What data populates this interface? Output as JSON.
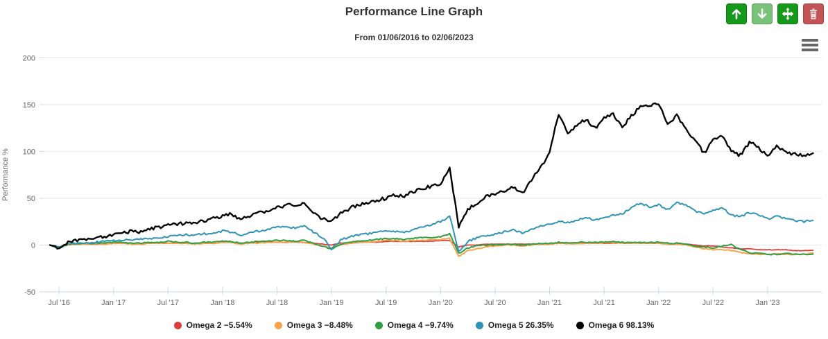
{
  "header": {
    "title": "Performance Line Graph",
    "subtitle": "From 01/06/2016 to 02/06/2023"
  },
  "toolbar": {
    "buttons": [
      {
        "name": "move-up-button",
        "icon": "arrow-up-icon",
        "color": "#15991b",
        "state": "enabled"
      },
      {
        "name": "move-down-button",
        "icon": "arrow-down-icon",
        "color": "#79c279",
        "state": "disabled"
      },
      {
        "name": "move-button",
        "icon": "move-arrows-icon",
        "color": "#15991b",
        "state": "enabled"
      },
      {
        "name": "delete-button",
        "icon": "trash-icon",
        "color": "#c25356",
        "state": "enabled"
      }
    ],
    "menu_icon": "hamburger-menu-icon"
  },
  "chart_data": {
    "type": "line",
    "title": "Performance Line Graph",
    "subtitle": "From 01/06/2016 to 02/06/2023",
    "xlabel": "",
    "ylabel": "Performance %",
    "ylim": [
      -50,
      200
    ],
    "grid": true,
    "legend_position": "bottom",
    "x_unit": "months since 2016-06",
    "x_range_months": [
      0,
      84
    ],
    "y_ticks": [
      {
        "v": -50,
        "label": "-50"
      },
      {
        "v": 0,
        "label": "0"
      },
      {
        "v": 50,
        "label": "50"
      },
      {
        "v": 100,
        "label": "100"
      },
      {
        "v": 150,
        "label": "150"
      },
      {
        "v": 200,
        "label": "200"
      }
    ],
    "x_ticks": [
      {
        "m": 1,
        "label": "Jul '16"
      },
      {
        "m": 7,
        "label": "Jan '17"
      },
      {
        "m": 13,
        "label": "Jul '17"
      },
      {
        "m": 19,
        "label": "Jan '18"
      },
      {
        "m": 25,
        "label": "Jul '18"
      },
      {
        "m": 31,
        "label": "Jan '19"
      },
      {
        "m": 37,
        "label": "Jul '19"
      },
      {
        "m": 43,
        "label": "Jan '20"
      },
      {
        "m": 49,
        "label": "Jul '20"
      },
      {
        "m": 55,
        "label": "Jan '21"
      },
      {
        "m": 61,
        "label": "Jul '21"
      },
      {
        "m": 67,
        "label": "Jan '22"
      },
      {
        "m": 73,
        "label": "Jul '22"
      },
      {
        "m": 79,
        "label": "Jan '23"
      }
    ],
    "series": [
      {
        "name": "Omega 2",
        "final_value_pct": -5.54,
        "legend_label": "Omega 2 −5.54%",
        "color": "#dc3c3c",
        "jitter": 0.25,
        "width": 1.8,
        "values": [
          0,
          -2,
          0,
          1,
          1,
          1,
          1,
          2,
          2,
          2,
          2,
          2,
          2,
          2,
          2,
          2,
          2,
          2,
          2,
          3,
          3,
          2,
          2,
          3,
          3,
          3,
          3,
          3,
          3,
          2,
          1,
          0,
          2,
          2,
          3,
          3,
          3,
          4,
          4,
          4,
          4,
          4,
          4,
          5,
          5,
          -2,
          0,
          0,
          1,
          1,
          1,
          1,
          1,
          1,
          1,
          1,
          2,
          2,
          2,
          2,
          2,
          2,
          2,
          2,
          2,
          2,
          2,
          2,
          1,
          1,
          1,
          0,
          -1,
          -1,
          -2,
          -3,
          -4,
          -4,
          -5,
          -5,
          -5,
          -5,
          -6,
          -6,
          -5.54
        ]
      },
      {
        "name": "Omega 3",
        "final_value_pct": -8.48,
        "legend_label": "Omega 3 −8.48%",
        "color": "#f9a24c",
        "jitter": 0.5,
        "width": 2,
        "values": [
          0,
          -3,
          0,
          1,
          1,
          1,
          1,
          2,
          2,
          1,
          1,
          2,
          2,
          2,
          2,
          2,
          1,
          2,
          2,
          3,
          3,
          1,
          2,
          2,
          3,
          3,
          3,
          3,
          3,
          1,
          -1,
          -3,
          1,
          2,
          3,
          3,
          4,
          5,
          5,
          4,
          5,
          5,
          6,
          6,
          7,
          -12,
          -6,
          -4,
          -2,
          -1,
          0,
          0,
          -1,
          0,
          1,
          1,
          2,
          1,
          2,
          2,
          2,
          2,
          3,
          2,
          2,
          2,
          2,
          2,
          1,
          1,
          0,
          -2,
          -4,
          -5,
          -5,
          -6,
          -8,
          -9,
          -10,
          -10,
          -9,
          -10,
          -10,
          -10,
          -8.48
        ]
      },
      {
        "name": "Omega 4",
        "final_value_pct": -9.74,
        "legend_label": "Omega 4 −9.74%",
        "color": "#2f9e41",
        "jitter": 0.6,
        "width": 2,
        "values": [
          0,
          -4,
          1,
          1,
          2,
          2,
          2,
          3,
          3,
          2,
          2,
          3,
          3,
          4,
          3,
          3,
          2,
          3,
          3,
          4,
          4,
          2,
          3,
          4,
          4,
          5,
          5,
          4,
          5,
          2,
          -1,
          -5,
          1,
          3,
          4,
          5,
          6,
          7,
          7,
          6,
          7,
          8,
          8,
          9,
          12,
          -9,
          -3,
          -1,
          0,
          0,
          1,
          1,
          0,
          1,
          2,
          2,
          3,
          2,
          3,
          3,
          3,
          3,
          4,
          3,
          3,
          3,
          3,
          3,
          2,
          2,
          1,
          -1,
          -2,
          -3,
          -1,
          1,
          -5,
          -8,
          -9,
          -10,
          -10,
          -9,
          -10,
          -10,
          -9.74
        ]
      },
      {
        "name": "Omega 5",
        "final_value_pct": 26.35,
        "legend_label": "Omega 5 26.35%",
        "color": "#2e93b5",
        "jitter": 1.1,
        "width": 2,
        "values": [
          0,
          -3,
          1,
          2,
          2,
          3,
          4,
          5,
          5,
          6,
          6,
          7,
          8,
          9,
          10,
          11,
          11,
          12,
          13,
          15,
          14,
          11,
          13,
          15,
          17,
          19,
          20,
          18,
          20,
          14,
          8,
          -4,
          5,
          9,
          11,
          12,
          14,
          15,
          15,
          14,
          16,
          19,
          22,
          25,
          31,
          -7,
          4,
          8,
          10,
          12,
          14,
          16,
          13,
          17,
          20,
          22,
          25,
          24,
          27,
          29,
          27,
          30,
          32,
          33,
          40,
          45,
          41,
          43,
          38,
          45,
          43,
          36,
          34,
          37,
          40,
          32,
          30,
          35,
          32,
          28,
          31,
          28,
          26,
          25,
          26.35
        ]
      },
      {
        "name": "Omega 6",
        "final_value_pct": 98.13,
        "legend_label": "Omega 6 98.13%",
        "color": "#000000",
        "jitter": 1.9,
        "width": 2.4,
        "values": [
          0,
          -5,
          3,
          5,
          6,
          8,
          9,
          11,
          13,
          15,
          14,
          17,
          19,
          21,
          22,
          24,
          23,
          26,
          29,
          31,
          33,
          27,
          31,
          34,
          37,
          40,
          43,
          42,
          44,
          36,
          28,
          25,
          34,
          39,
          43,
          44,
          48,
          50,
          53,
          52,
          57,
          60,
          63,
          66,
          82,
          20,
          38,
          45,
          52,
          55,
          58,
          62,
          55,
          70,
          82,
          100,
          140,
          120,
          128,
          135,
          125,
          135,
          140,
          126,
          138,
          148,
          150,
          152,
          128,
          138,
          124,
          112,
          98,
          112,
          116,
          100,
          96,
          110,
          104,
          95,
          106,
          99,
          97,
          96,
          98.13
        ]
      }
    ]
  },
  "colors": {
    "grid": "#e6e6e6",
    "axis_line": "#ccd6eb",
    "tick": "#ccd6eb",
    "axis_label": "#666666",
    "title": "#333333"
  }
}
